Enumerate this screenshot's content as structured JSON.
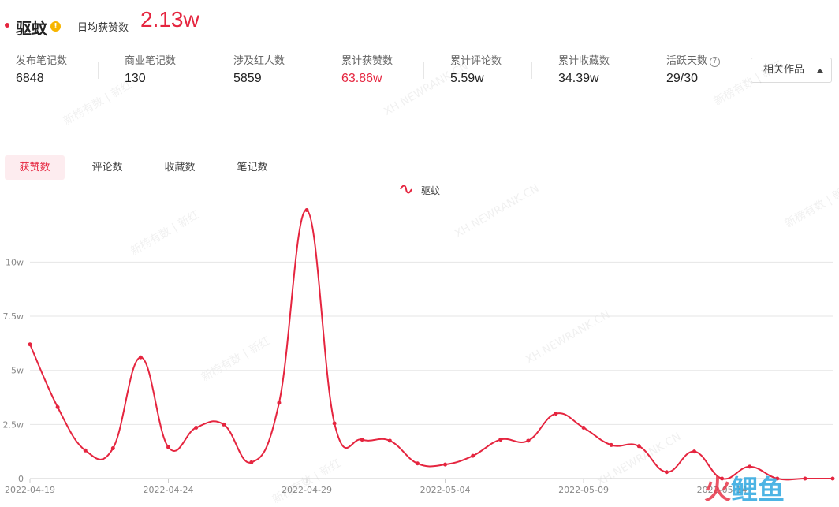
{
  "header": {
    "title": "驱蚊",
    "badge_icon": "info-badge-icon",
    "avg_label": "日均获赞数",
    "avg_value": "2.13w"
  },
  "stats": [
    {
      "label": "发布笔记数",
      "value": "6848"
    },
    {
      "label": "商业笔记数",
      "value": "130"
    },
    {
      "label": "涉及红人数",
      "value": "5859"
    },
    {
      "label": "累计获赞数",
      "value": "63.86w"
    },
    {
      "label": "累计评论数",
      "value": "5.59w"
    },
    {
      "label": "累计收藏数",
      "value": "34.39w"
    },
    {
      "label": "活跃天数",
      "value": "29/30"
    }
  ],
  "related_button": "相关作品",
  "tabs": [
    {
      "label": "获赞数"
    },
    {
      "label": "评论数"
    },
    {
      "label": "收藏数"
    },
    {
      "label": "笔记数"
    }
  ],
  "watermarks": {
    "cn": "新榜有数 | 新红",
    "en": "XH.NEWRANK.CN"
  },
  "logo": {
    "left": "火",
    "right": "鲤鱼"
  },
  "colors": {
    "accent": "#e5253f",
    "grid": "#e6e6e6"
  },
  "chart_data": {
    "type": "line",
    "series": [
      {
        "name": "驱蚊",
        "values": [
          62000,
          33000,
          13000,
          14000,
          56000,
          14500,
          23500,
          25000,
          7500,
          35000,
          124000,
          25500,
          18000,
          17500,
          7000,
          6500,
          10500,
          18000,
          17500,
          30000,
          23500,
          15500,
          15000,
          3000,
          12500,
          0,
          5500,
          0,
          0,
          0
        ]
      }
    ],
    "x": [
      "2022-04-19",
      "2022-04-20",
      "2022-04-21",
      "2022-04-22",
      "2022-04-23",
      "2022-04-24",
      "2022-04-25",
      "2022-04-26",
      "2022-04-27",
      "2022-04-28",
      "2022-04-29",
      "2022-04-30",
      "2022-05-01",
      "2022-05-02",
      "2022-05-03",
      "2022-05-04",
      "2022-05-05",
      "2022-05-06",
      "2022-05-07",
      "2022-05-08",
      "2022-05-09",
      "2022-05-10",
      "2022-05-11",
      "2022-05-12",
      "2022-05-13",
      "2022-05-14",
      "2022-05-15",
      "2022-05-16",
      "2022-05-17",
      "2022-05-18"
    ],
    "x_tick_labels": [
      "2022-04-19",
      "2022-04-24",
      "2022-04-29",
      "2022-05-04",
      "2022-05-09",
      "2022-05-14"
    ],
    "y_ticks": [
      {
        "value": 0,
        "label": "0"
      },
      {
        "value": 25000,
        "label": "2.5w"
      },
      {
        "value": 50000,
        "label": "5w"
      },
      {
        "value": 75000,
        "label": "7.5w"
      },
      {
        "value": 100000,
        "label": "10w"
      }
    ],
    "ylim": [
      0,
      130000
    ],
    "legend": "top-center",
    "grid": true
  }
}
